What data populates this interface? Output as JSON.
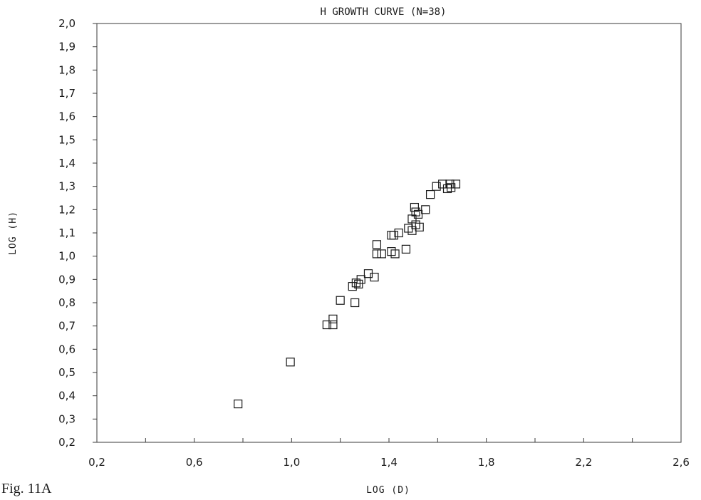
{
  "caption": "Fig. 11A",
  "chart_data": {
    "type": "scatter",
    "title": "H  GROWTH CURVE  (N=38)",
    "xlabel": "LOG (D)",
    "ylabel": "LOG (H)",
    "xlim": [
      0.2,
      2.6
    ],
    "ylim": [
      0.2,
      2.0
    ],
    "x_ticks": [
      0.2,
      0.4,
      0.6,
      0.8,
      1.0,
      1.2,
      1.4,
      1.6,
      1.8,
      2.0,
      2.2,
      2.4,
      2.6
    ],
    "x_tick_labels": [
      "0,2",
      "",
      "0,6",
      "",
      "1,0",
      "",
      "1,4",
      "",
      "1,8",
      "",
      "2,2",
      "",
      "2,6"
    ],
    "y_ticks": [
      0.2,
      0.3,
      0.4,
      0.5,
      0.6,
      0.7,
      0.8,
      0.9,
      1.0,
      1.1,
      1.2,
      1.3,
      1.4,
      1.5,
      1.6,
      1.7,
      1.8,
      1.9,
      2.0
    ],
    "y_tick_labels": [
      "0,2",
      "0,3",
      "0,4",
      "0,5",
      "0,6",
      "0,7",
      "0,8",
      "0,9",
      "1,0",
      "1,1",
      "1,2",
      "1,3",
      "1,4",
      "1,5",
      "1,6",
      "1,7",
      "1,8",
      "1,9",
      "2,0"
    ],
    "grid": false,
    "marker": "hollow-square",
    "series": [
      {
        "points": [
          [
            0.78,
            0.365
          ],
          [
            0.995,
            0.545
          ],
          [
            1.145,
            0.705
          ],
          [
            1.17,
            0.705
          ],
          [
            1.17,
            0.73
          ],
          [
            1.2,
            0.81
          ],
          [
            1.25,
            0.87
          ],
          [
            1.26,
            0.8
          ],
          [
            1.265,
            0.885
          ],
          [
            1.275,
            0.88
          ],
          [
            1.285,
            0.9
          ],
          [
            1.315,
            0.925
          ],
          [
            1.34,
            0.91
          ],
          [
            1.35,
            1.05
          ],
          [
            1.35,
            1.01
          ],
          [
            1.37,
            1.01
          ],
          [
            1.41,
            1.09
          ],
          [
            1.41,
            1.02
          ],
          [
            1.42,
            1.09
          ],
          [
            1.425,
            1.01
          ],
          [
            1.44,
            1.1
          ],
          [
            1.47,
            1.03
          ],
          [
            1.48,
            1.12
          ],
          [
            1.495,
            1.11
          ],
          [
            1.495,
            1.16
          ],
          [
            1.505,
            1.21
          ],
          [
            1.51,
            1.135
          ],
          [
            1.51,
            1.19
          ],
          [
            1.52,
            1.18
          ],
          [
            1.525,
            1.125
          ],
          [
            1.55,
            1.2
          ],
          [
            1.57,
            1.265
          ],
          [
            1.595,
            1.3
          ],
          [
            1.62,
            1.31
          ],
          [
            1.64,
            1.29
          ],
          [
            1.65,
            1.31
          ],
          [
            1.655,
            1.295
          ],
          [
            1.675,
            1.31
          ]
        ]
      }
    ]
  }
}
